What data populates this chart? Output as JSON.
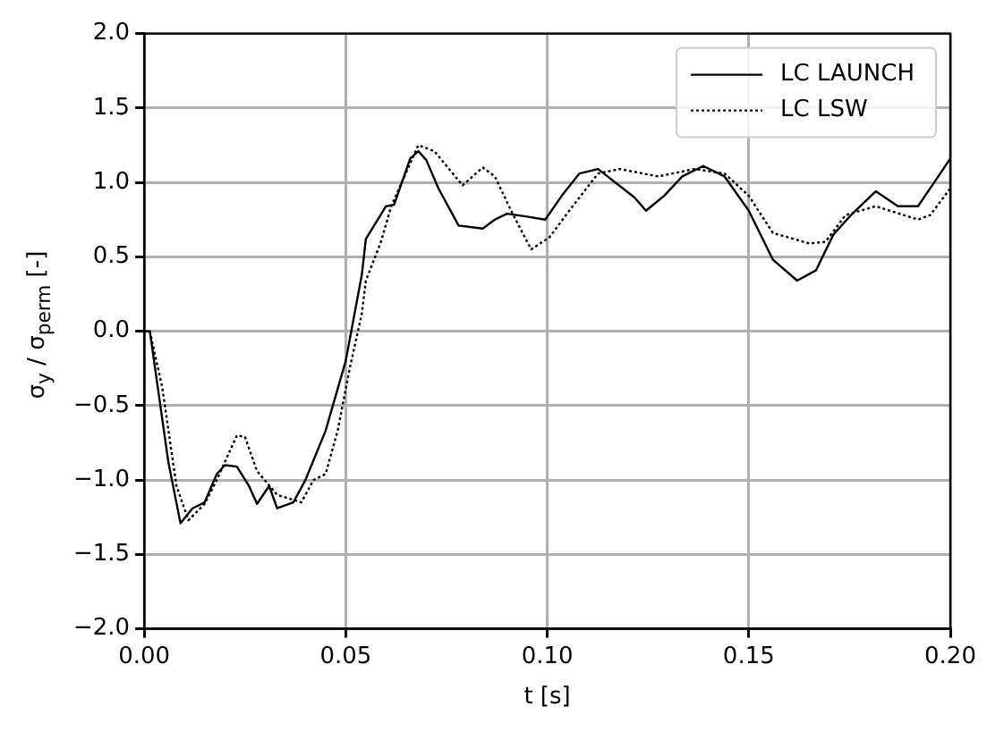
{
  "chart_data": {
    "type": "line",
    "xlabel": "t [s]",
    "ylabel": "σ$_{y}$ / σ$_{perm}$ [-]",
    "xlim": [
      0,
      0.2
    ],
    "ylim": [
      -2,
      2
    ],
    "xticks": [
      {
        "value": 0,
        "label": "0.00"
      },
      {
        "value": 0.05,
        "label": "0.05"
      },
      {
        "value": 0.1,
        "label": "0.10"
      },
      {
        "value": 0.15,
        "label": "0.15"
      },
      {
        "value": 0.2,
        "label": "0.20"
      }
    ],
    "yticks": [
      {
        "value": -2,
        "label": "−2.0"
      },
      {
        "value": -1.5,
        "label": "−1.5"
      },
      {
        "value": -1,
        "label": "−1.0"
      },
      {
        "value": -0.5,
        "label": "−0.5"
      },
      {
        "value": 0,
        "label": "0.0"
      },
      {
        "value": 0.5,
        "label": "0.5"
      },
      {
        "value": 1,
        "label": "1.0"
      },
      {
        "value": 1.5,
        "label": "1.5"
      },
      {
        "value": 2,
        "label": "2.0"
      }
    ],
    "grid": true,
    "legend": "top right",
    "marker": "none",
    "series": [
      {
        "name": "LC LAUNCH",
        "color": "#000000",
        "line_style": "solid",
        "x": [
          0,
          0.0014,
          0.006,
          0.009,
          0.012,
          0.015,
          0.018,
          0.02,
          0.023,
          0.026,
          0.028,
          0.031,
          0.033,
          0.037,
          0.04,
          0.045,
          0.05,
          0.054,
          0.055,
          0.06,
          0.062,
          0.066,
          0.068,
          0.07,
          0.073,
          0.078,
          0.084,
          0.087,
          0.09,
          0.095,
          0.0995,
          0.1036,
          0.108,
          0.1126,
          0.1216,
          0.1245,
          0.129,
          0.1335,
          0.1387,
          0.144,
          0.15,
          0.156,
          0.162,
          0.1667,
          0.171,
          0.1757,
          0.1815,
          0.187,
          0.192,
          0.196,
          0.2
        ],
        "values": [
          0,
          0,
          -0.88,
          -1.29,
          -1.19,
          -1.15,
          -0.96,
          -0.9,
          -0.91,
          -1.04,
          -1.16,
          -1.04,
          -1.19,
          -1.15,
          -1.0,
          -0.67,
          -0.2,
          0.38,
          0.62,
          0.84,
          0.85,
          1.16,
          1.21,
          1.15,
          0.96,
          0.71,
          0.69,
          0.75,
          0.79,
          0.77,
          0.75,
          0.91,
          1.06,
          1.09,
          0.9,
          0.81,
          0.91,
          1.04,
          1.11,
          1.04,
          0.81,
          0.48,
          0.34,
          0.41,
          0.65,
          0.79,
          0.94,
          0.84,
          0.84,
          1.0,
          1.16
        ]
      },
      {
        "name": "LC LSW",
        "color": "#000000",
        "line_style": "dotted",
        "x": [
          0,
          0.0014,
          0.0045,
          0.008,
          0.011,
          0.015,
          0.018,
          0.02,
          0.023,
          0.025,
          0.028,
          0.033,
          0.039,
          0.042,
          0.045,
          0.048,
          0.051,
          0.054,
          0.055,
          0.0586,
          0.0613,
          0.068,
          0.072,
          0.079,
          0.084,
          0.087,
          0.0914,
          0.096,
          0.1005,
          0.1063,
          0.1126,
          0.118,
          0.1275,
          0.1365,
          0.144,
          0.15,
          0.156,
          0.165,
          0.169,
          0.174,
          0.1815,
          0.192,
          0.195,
          0.2
        ],
        "values": [
          0,
          0,
          -0.38,
          -1.04,
          -1.27,
          -1.16,
          -1.0,
          -0.88,
          -0.7,
          -0.71,
          -0.94,
          -1.1,
          -1.15,
          -1.0,
          -0.96,
          -0.67,
          -0.25,
          0.12,
          0.34,
          0.59,
          0.84,
          1.25,
          1.21,
          0.98,
          1.1,
          1.04,
          0.79,
          0.55,
          0.63,
          0.84,
          1.06,
          1.09,
          1.04,
          1.09,
          1.06,
          0.91,
          0.66,
          0.59,
          0.6,
          0.78,
          0.84,
          0.75,
          0.78,
          0.96
        ]
      }
    ]
  }
}
